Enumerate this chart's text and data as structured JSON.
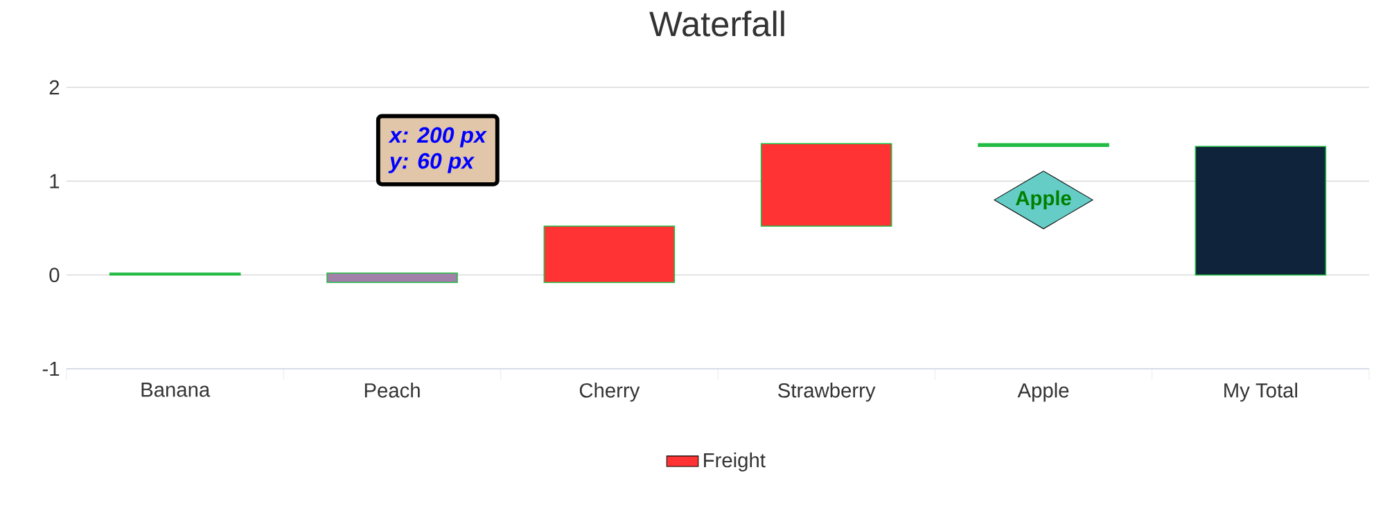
{
  "chart_data": {
    "type": "bar",
    "title": "Waterfall",
    "categories": [
      "Banana",
      "Peach",
      "Cherry",
      "Strawberry",
      "Apple",
      "My Total"
    ],
    "series": [
      {
        "name": "Freight",
        "color": "#ff3333",
        "values": [
          0.02,
          -0.1,
          0.6,
          0.88,
          -0.03,
          1.37
        ],
        "base": [
          0,
          0.02,
          -0.08,
          0.52,
          1.4,
          0
        ],
        "colors": [
          "#22bb44",
          "#a080a8",
          "#ff3333",
          "#ff3333",
          "#22bb44",
          "#0f243a"
        ]
      }
    ],
    "ylim": [
      -1,
      2
    ],
    "yticks": [
      -1,
      0,
      1,
      2
    ],
    "grid": "y",
    "legend": "bottom",
    "annotations": [
      "x: 200 px",
      "y: 60 px",
      "Apple"
    ]
  }
}
